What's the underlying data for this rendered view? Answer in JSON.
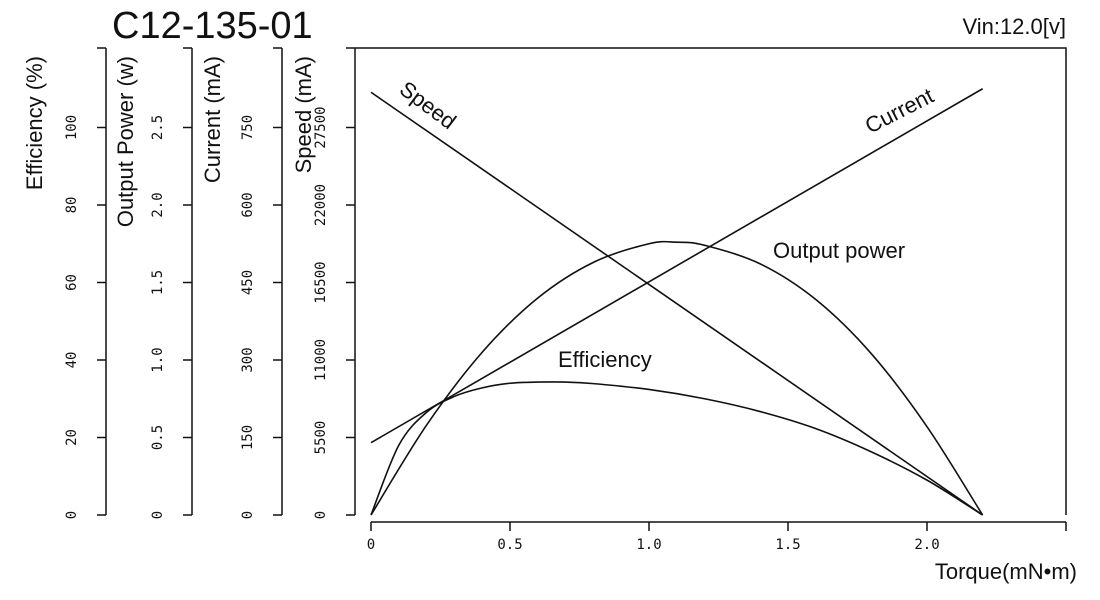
{
  "chart_data": {
    "type": "line",
    "title": "C12-135-01",
    "annotation": "Vin:12.0[v]",
    "xlabel": "Torque(mN•m)",
    "xlim": [
      0,
      2.5
    ],
    "xticks": [
      "0",
      "0.5",
      "1.0",
      "1.5",
      "2.0"
    ],
    "left_axes": [
      {
        "label": "Efficiency (%)",
        "ticks": [
          "0",
          "20",
          "40",
          "60",
          "80",
          "100"
        ]
      },
      {
        "label": "Output Power (w)",
        "ticks": [
          "0",
          "0.5",
          "1.0",
          "1.5",
          "2.0",
          "2.5"
        ]
      },
      {
        "label": "Current (mA)",
        "ticks": [
          "0",
          "150",
          "300",
          "450",
          "600",
          "750"
        ]
      },
      {
        "label": "Speed (mA)",
        "ticks": [
          "0",
          "5500",
          "11000",
          "16500",
          "22000",
          "27500"
        ]
      }
    ],
    "ylims": {
      "efficiency": [
        0,
        120
      ],
      "output_power": [
        0,
        3.0
      ],
      "current": [
        0,
        900
      ],
      "speed": [
        0,
        33000
      ]
    },
    "grid": false,
    "series": [
      {
        "name": "Speed",
        "axis": "speed",
        "x": [
          0,
          2.2
        ],
        "y": [
          30000,
          0
        ]
      },
      {
        "name": "Current",
        "axis": "current",
        "x": [
          0,
          2.2
        ],
        "y": [
          140,
          825
        ]
      },
      {
        "name": "Output power",
        "axis": "output_power",
        "x": [
          0,
          0.2,
          0.4,
          0.6,
          0.8,
          1.0,
          1.1,
          1.2,
          1.4,
          1.6,
          1.8,
          2.0,
          2.2
        ],
        "y": [
          0,
          0.58,
          1.05,
          1.4,
          1.63,
          1.75,
          1.76,
          1.74,
          1.62,
          1.39,
          1.04,
          0.57,
          0
        ]
      },
      {
        "name": "Efficiency",
        "axis": "efficiency",
        "x": [
          0,
          0.1,
          0.2,
          0.3,
          0.4,
          0.5,
          0.6,
          0.7,
          0.8,
          1.0,
          1.2,
          1.4,
          1.6,
          1.8,
          2.0,
          2.2
        ],
        "y": [
          0,
          18,
          26.5,
          30.6,
          32.8,
          34,
          34.3,
          34.3,
          33.9,
          32.4,
          30,
          26.7,
          22.3,
          16.3,
          9,
          0
        ]
      }
    ]
  }
}
